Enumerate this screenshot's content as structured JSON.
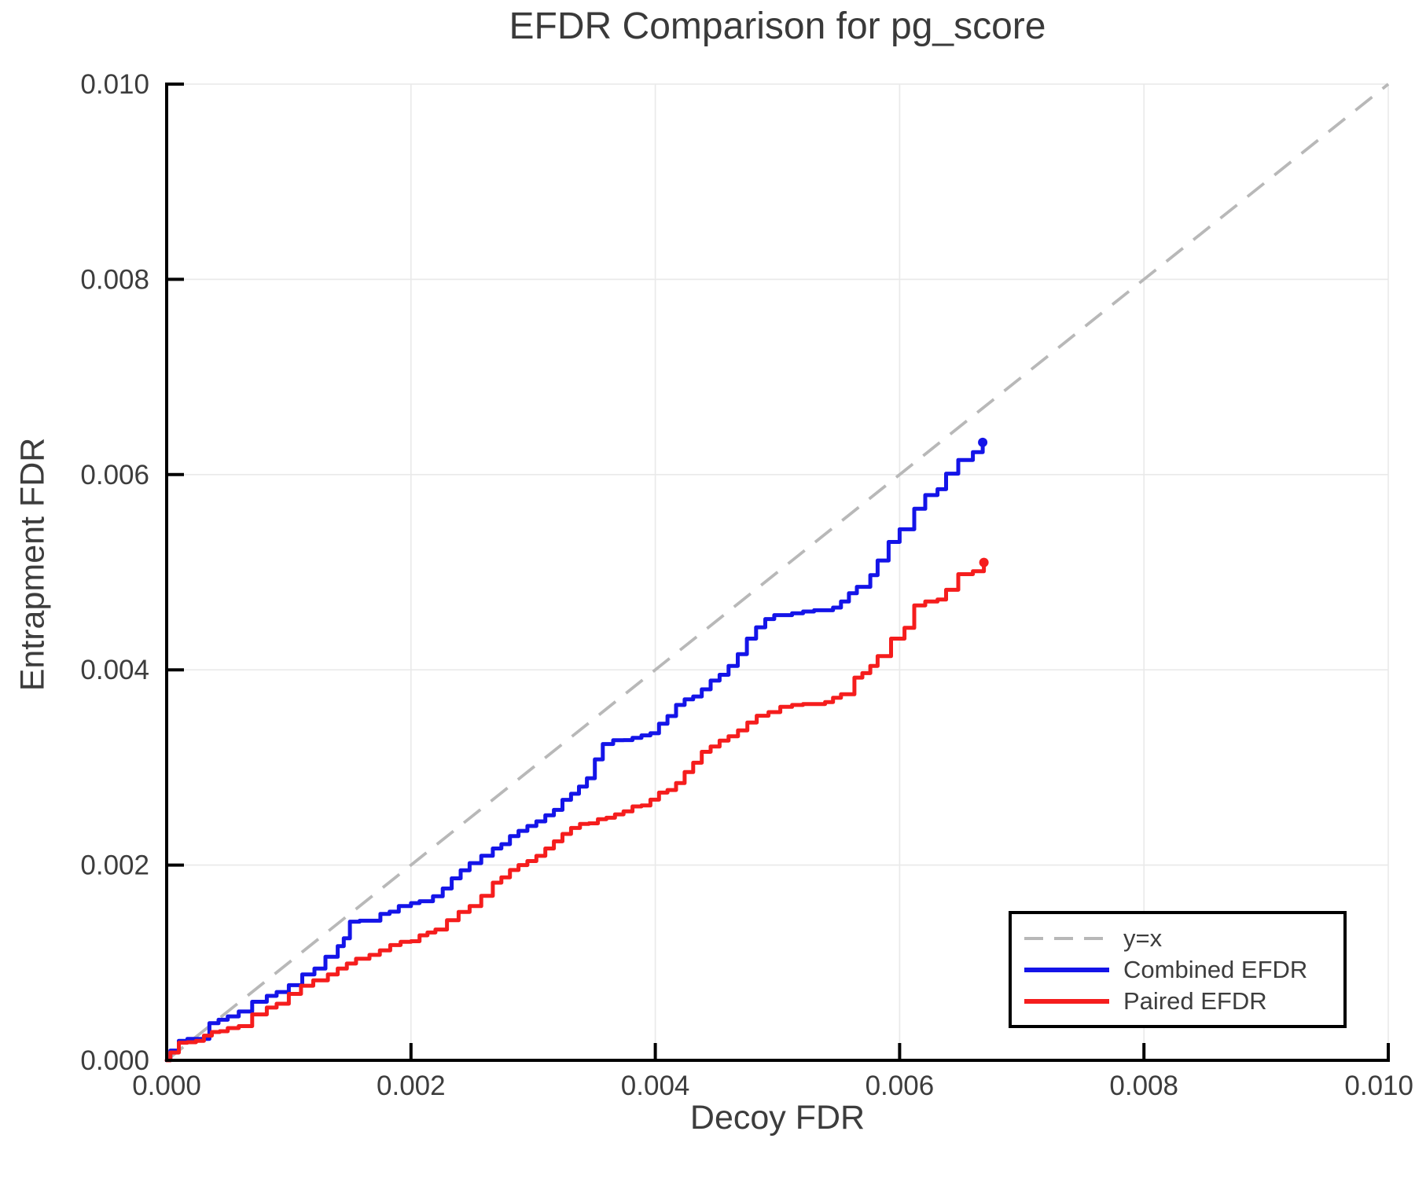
{
  "chart_data": {
    "type": "line",
    "title": "EFDR Comparison for pg_score",
    "xlabel": "Decoy FDR",
    "ylabel": "Entrapment FDR",
    "xlim": [
      0.0,
      0.01
    ],
    "ylim": [
      0.0,
      0.01
    ],
    "grid": true,
    "xticks": {
      "values": [
        0.0,
        0.002,
        0.004,
        0.006,
        0.008,
        0.01
      ],
      "labels": [
        "0.000",
        "0.002",
        "0.004",
        "0.006",
        "0.008",
        "0.010"
      ]
    },
    "yticks": {
      "values": [
        0.0,
        0.002,
        0.004,
        0.006,
        0.008,
        0.01
      ],
      "labels": [
        "0.000",
        "0.002",
        "0.004",
        "0.006",
        "0.008",
        "0.010"
      ]
    },
    "legend": {
      "position": "bottom-right"
    },
    "colors": {
      "identity": "#b8b8b8",
      "combined": "#1414e8",
      "paired": "#f51d1d",
      "grid": "#e9e9e9",
      "spine": "#000000",
      "text": "#3d3d3d"
    },
    "series": [
      {
        "name": "y=x",
        "type": "identity-line",
        "style": "dashed",
        "color": "#b8b8b8",
        "points": [
          [
            0.0,
            0.0
          ],
          [
            0.01,
            0.01
          ]
        ]
      },
      {
        "name": "Combined EFDR",
        "type": "stepped",
        "style": "solid",
        "color": "#1414e8",
        "endpoint_dot": true,
        "points": [
          [
            0.0,
            0.0
          ],
          [
            3e-05,
            0.0001
          ],
          [
            0.0001,
            0.0002
          ],
          [
            0.00024,
            0.00022
          ],
          [
            0.00035,
            0.00038
          ],
          [
            0.0005,
            0.00045
          ],
          [
            0.00059,
            0.0005
          ],
          [
            0.0007,
            0.0006
          ],
          [
            0.00082,
            0.00066
          ],
          [
            0.0009,
            0.0007
          ],
          [
            0.001,
            0.00077
          ],
          [
            0.00111,
            0.00088
          ],
          [
            0.00121,
            0.00094
          ],
          [
            0.0013,
            0.00106
          ],
          [
            0.0014,
            0.00117
          ],
          [
            0.00145,
            0.00125
          ],
          [
            0.0015,
            0.00142
          ],
          [
            0.00166,
            0.00143
          ],
          [
            0.00175,
            0.0015
          ],
          [
            0.0019,
            0.00158
          ],
          [
            0.002,
            0.00161
          ],
          [
            0.00207,
            0.00163
          ],
          [
            0.00218,
            0.00168
          ],
          [
            0.00226,
            0.00176
          ],
          [
            0.00248,
            0.00202
          ],
          [
            0.00267,
            0.00217
          ],
          [
            0.00288,
            0.00235
          ],
          [
            0.0031,
            0.00251
          ],
          [
            0.00331,
            0.00273
          ],
          [
            0.00344,
            0.00289
          ],
          [
            0.00357,
            0.00324
          ],
          [
            0.00374,
            0.00328
          ],
          [
            0.00396,
            0.00335
          ],
          [
            0.00417,
            0.00364
          ],
          [
            0.00438,
            0.0038
          ],
          [
            0.0046,
            0.00404
          ],
          [
            0.00475,
            0.00432
          ],
          [
            0.0049,
            0.00452
          ],
          [
            0.00512,
            0.00458
          ],
          [
            0.00539,
            0.00461
          ],
          [
            0.00552,
            0.0047
          ],
          [
            0.00565,
            0.00485
          ],
          [
            0.00576,
            0.00497
          ],
          [
            0.00582,
            0.00512
          ],
          [
            0.00591,
            0.00531
          ],
          [
            0.006,
            0.00544
          ],
          [
            0.00612,
            0.00565
          ],
          [
            0.00621,
            0.00579
          ],
          [
            0.00631,
            0.00585
          ],
          [
            0.00638,
            0.00601
          ],
          [
            0.00648,
            0.00615
          ],
          [
            0.0066,
            0.00623
          ],
          [
            0.00668,
            0.00633
          ]
        ]
      },
      {
        "name": "Paired EFDR",
        "type": "stepped",
        "style": "solid",
        "color": "#f51d1d",
        "endpoint_dot": true,
        "points": [
          [
            0.0,
            0.0
          ],
          [
            3e-05,
            8e-05
          ],
          [
            0.0001,
            0.00018
          ],
          [
            0.00024,
            0.0002
          ],
          [
            0.00037,
            0.00029
          ],
          [
            0.0005,
            0.00033
          ],
          [
            0.00059,
            0.00035
          ],
          [
            0.0007,
            0.00047
          ],
          [
            0.00082,
            0.00054
          ],
          [
            0.0009,
            0.00058
          ],
          [
            0.001,
            0.00068
          ],
          [
            0.0012,
            0.00082
          ],
          [
            0.00132,
            0.00088
          ],
          [
            0.0014,
            0.00094
          ],
          [
            0.00155,
            0.00104
          ],
          [
            0.00166,
            0.00108
          ],
          [
            0.00183,
            0.00118
          ],
          [
            0.002,
            0.00122
          ],
          [
            0.00207,
            0.00128
          ],
          [
            0.0022,
            0.00134
          ],
          [
            0.00239,
            0.00152
          ],
          [
            0.00248,
            0.00158
          ],
          [
            0.00267,
            0.00182
          ],
          [
            0.00288,
            0.002
          ],
          [
            0.0031,
            0.00217
          ],
          [
            0.00331,
            0.00238
          ],
          [
            0.00353,
            0.00247
          ],
          [
            0.00374,
            0.00255
          ],
          [
            0.00396,
            0.00267
          ],
          [
            0.00417,
            0.00284
          ],
          [
            0.00438,
            0.00316
          ],
          [
            0.0046,
            0.00332
          ],
          [
            0.00483,
            0.00353
          ],
          [
            0.00512,
            0.00364
          ],
          [
            0.00539,
            0.00367
          ],
          [
            0.00552,
            0.00375
          ],
          [
            0.00563,
            0.00392
          ],
          [
            0.00576,
            0.00404
          ],
          [
            0.00582,
            0.00414
          ],
          [
            0.00593,
            0.00432
          ],
          [
            0.00604,
            0.00443
          ],
          [
            0.00612,
            0.00466
          ],
          [
            0.00621,
            0.0047
          ],
          [
            0.00631,
            0.00472
          ],
          [
            0.00638,
            0.00482
          ],
          [
            0.00648,
            0.00498
          ],
          [
            0.0066,
            0.00501
          ],
          [
            0.00669,
            0.0051
          ]
        ]
      }
    ]
  }
}
